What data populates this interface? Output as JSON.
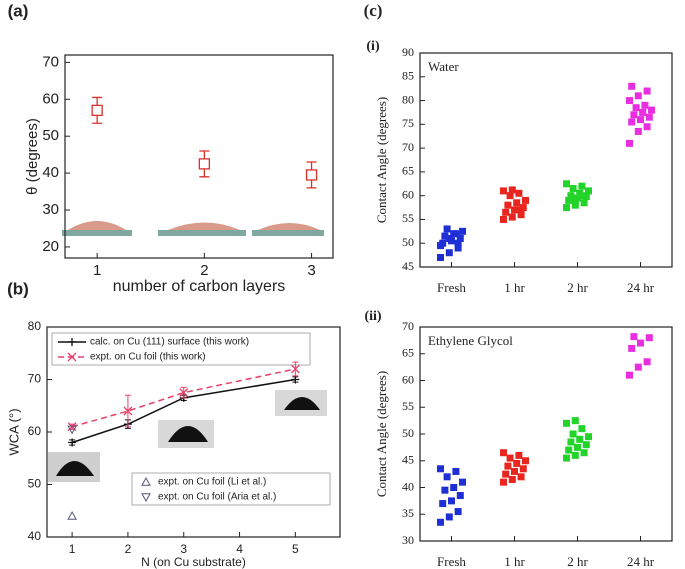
{
  "chart_data": [
    {
      "type": "scatter",
      "panel_label": "(a)",
      "y_label": "θ (degrees)",
      "x_label": "number of carbon layers",
      "x": [
        1,
        2,
        3
      ],
      "values": [
        57,
        42.5,
        39.5
      ],
      "errors": [
        3.5,
        3.5,
        3.5
      ],
      "color": "#d9312b",
      "marker": "square-open",
      "xlim": [
        0.7,
        3.2
      ],
      "ylim": [
        17,
        72
      ],
      "xticks": [
        1,
        2,
        3
      ],
      "yticks": [
        20,
        30,
        40,
        50,
        60,
        70
      ]
    },
    {
      "type": "line",
      "panel_label": "(b)",
      "y_label": "WCA (°)",
      "x_label": "N (on Cu substrate)",
      "xlim": [
        0.55,
        5.8
      ],
      "ylim": [
        40,
        80
      ],
      "xticks": [
        1,
        2,
        3,
        4,
        5
      ],
      "yticks": [
        40,
        50,
        60,
        70,
        80
      ],
      "series": [
        {
          "name": "calc. on Cu (111) surface (this work)",
          "color": "#111111",
          "line_style": "solid",
          "marker": "plus",
          "x": [
            1,
            2,
            3,
            5
          ],
          "values": [
            58,
            61.5,
            66.5,
            70
          ],
          "errors": [
            0.5,
            0.8,
            0.5,
            0.5
          ]
        },
        {
          "name": "expt. on Cu foil (this work)",
          "color": "#e8416a",
          "line_style": "dashed",
          "marker": "x",
          "x": [
            1,
            2,
            3,
            5
          ],
          "values": [
            61,
            64,
            67.5,
            72
          ],
          "errors": [
            0.5,
            3,
            1,
            1.3
          ]
        },
        {
          "name": "expt. on Cu foil (Li et al.)",
          "color": "#55557a",
          "line_style": "none",
          "marker": "triangle-up",
          "x": [
            1
          ],
          "values": [
            44
          ],
          "errors": [
            0
          ]
        },
        {
          "name": "expt. on Cu foil (Aria et al.)",
          "color": "#55557a",
          "line_style": "none",
          "marker": "triangle-down",
          "x": [
            1
          ],
          "values": [
            60.5
          ],
          "errors": [
            0
          ]
        }
      ]
    },
    {
      "type": "strip",
      "group_label": "(c)",
      "panel_label": "(i)",
      "annotation": "Water",
      "y_label": "Contact Angle (degrees)",
      "categories": [
        "Fresh",
        "1 hr",
        "2 hr",
        "24 hr"
      ],
      "colors": [
        "#1f2fd6",
        "#e8251f",
        "#22d42a",
        "#e82ee0"
      ],
      "values": [
        [
          47,
          48,
          49,
          50,
          50.5,
          51,
          51.5,
          52,
          52.5,
          53,
          52,
          49.5,
          51,
          50
        ],
        [
          55,
          55.5,
          56,
          56.5,
          57,
          57.5,
          58,
          58.5,
          59,
          60,
          60.5,
          61,
          61.2,
          57
        ],
        [
          57.5,
          58,
          58.5,
          59,
          59.5,
          59.8,
          60,
          60.5,
          61,
          61.5,
          62,
          62.5,
          59,
          60
        ],
        [
          71,
          73.5,
          74.5,
          75.5,
          76,
          76.5,
          77,
          77.5,
          78,
          78.5,
          79,
          80,
          81,
          82,
          83
        ]
      ],
      "ylim": [
        45,
        90
      ],
      "yticks": [
        45,
        50,
        55,
        60,
        65,
        70,
        75,
        80,
        85,
        90
      ]
    },
    {
      "type": "strip",
      "panel_label": "(ii)",
      "annotation": "Ethylene Glycol",
      "y_label": "Contact Angle (degrees)",
      "categories": [
        "Fresh",
        "1 hr",
        "2 hr",
        "24 hr"
      ],
      "colors": [
        "#1f2fd6",
        "#e8251f",
        "#22d42a",
        "#e82ee0"
      ],
      "values": [
        [
          33.5,
          34.5,
          35.5,
          37,
          37.5,
          38.5,
          39.5,
          40,
          41,
          42,
          43,
          43.5
        ],
        [
          41,
          41.5,
          42,
          42.5,
          43,
          43.5,
          44,
          44.5,
          45,
          45.5,
          46,
          46.5
        ],
        [
          45.5,
          46,
          46.5,
          47,
          47.5,
          48,
          48.5,
          49,
          49.5,
          50,
          51,
          52,
          52.5
        ],
        [
          61,
          62.5,
          63.5,
          66,
          67,
          68,
          68.2
        ]
      ],
      "ylim": [
        30,
        70
      ],
      "yticks": [
        30,
        35,
        40,
        45,
        50,
        55,
        60,
        65,
        70
      ]
    }
  ]
}
